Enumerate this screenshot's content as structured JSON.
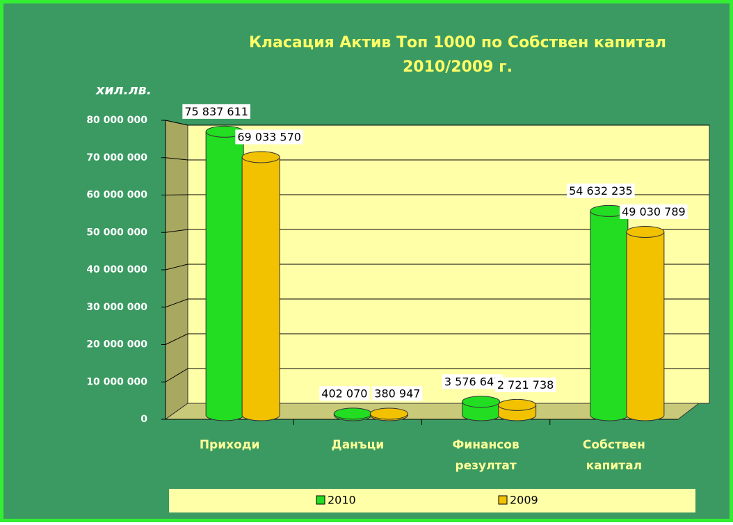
{
  "chart_data": {
    "type": "bar3d",
    "title": [
      "Класация Актив Топ 1000  по Собствен капитал",
      "2010/2009 г."
    ],
    "ylabel": "хил.лв.",
    "categories": [
      "Приходи",
      "Данъци",
      "Финансов резултат",
      "Собствен капитал"
    ],
    "series": [
      {
        "name": "2010",
        "color": "#22dd22",
        "values": [
          75837611,
          402070,
          3576647,
          54632235
        ],
        "value_labels": [
          "75 837 611",
          "402 070",
          "3 576 647",
          "54 632 235"
        ]
      },
      {
        "name": "2009",
        "color": "#f2c200",
        "values": [
          69033570,
          380947,
          2721738,
          49030789
        ],
        "value_labels": [
          "69 033 570",
          "380 947",
          "2 721 738",
          "49 030 789"
        ]
      }
    ],
    "ylim": [
      0,
      80000000
    ],
    "yticks": [
      0,
      {
        "value": 10000000,
        "label": "10 000 000"
      },
      {
        "value": 20000000,
        "label": "20 000 000"
      },
      {
        "value": 30000000,
        "label": "30 000 000"
      },
      {
        "value": 40000000,
        "label": "40 000 000"
      },
      {
        "value": 50000000,
        "label": "50 000 000"
      },
      {
        "value": 60000000,
        "label": "60 000 000"
      },
      {
        "value": 70000000,
        "label": "70 000 000"
      },
      {
        "value": 80000000,
        "label": "80 000 000"
      }
    ],
    "grid": true
  }
}
